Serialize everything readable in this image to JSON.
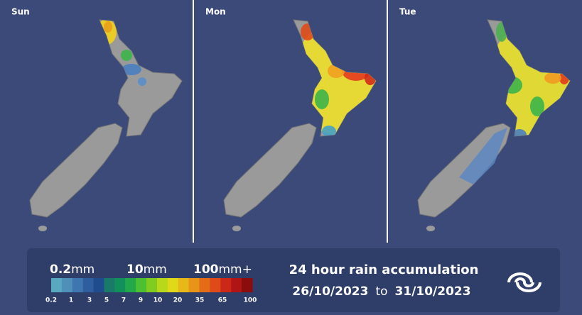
{
  "panels": [
    {
      "label": "Sun"
    },
    {
      "label": "Mon"
    },
    {
      "label": "Tue"
    }
  ],
  "legend": {
    "scale_labels": [
      {
        "number": "0.2",
        "unit": "mm"
      },
      {
        "number": "10",
        "unit": "mm"
      },
      {
        "number": "100",
        "unit": "mm+"
      }
    ],
    "ticks": [
      "0.2",
      "1",
      "3",
      "5",
      "7",
      "9",
      "10",
      "20",
      "35",
      "65",
      "100"
    ],
    "title": "24 hour rain accumulation",
    "date_from": "26/10/2023",
    "date_sep": "to",
    "date_to": "31/10/2023"
  }
}
